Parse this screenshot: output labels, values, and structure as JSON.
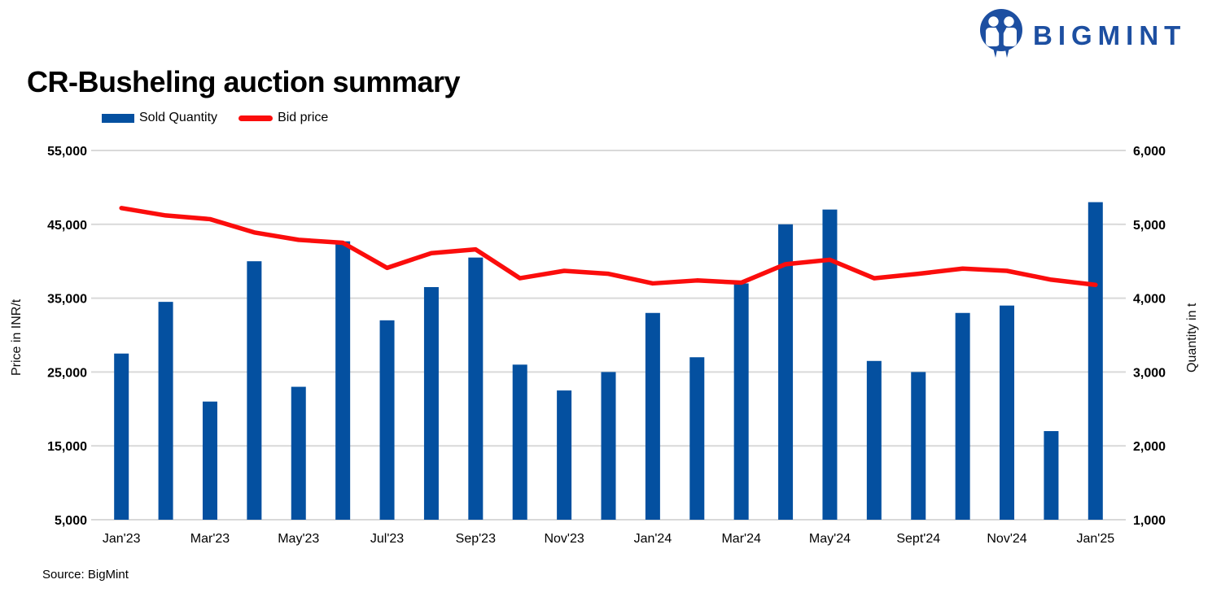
{
  "header": {
    "title": "CR-Busheling auction summary",
    "logo_text": "BIGMINT"
  },
  "legend": {
    "items": [
      {
        "label": "Sold Quantity",
        "type": "bar",
        "color": "#0450a0"
      },
      {
        "label": "Bid price",
        "type": "line",
        "color": "#fb0d0c"
      }
    ]
  },
  "axes": {
    "left_title": "Price in INR/t",
    "right_title": "Quantity in t"
  },
  "footer": {
    "source": "Source: BigMint"
  },
  "colors": {
    "bar_blue": "#0450a0",
    "line_red": "#fb0d0c",
    "logo_blue": "#1d4fa1",
    "gridline_gray": "#d9d9d9"
  },
  "chart_data": {
    "type": "bar",
    "subtype": "bar+line dual axis",
    "title": "CR-Busheling auction summary",
    "source": "Source: BigMint",
    "grid": true,
    "legend_position": "top-left",
    "categories": [
      "Jan'23",
      "Feb'23",
      "Mar'23",
      "Apr'23",
      "May'23",
      "Jun'23",
      "Jul'23",
      "Aug'23",
      "Sep'23",
      "Oct'23",
      "Nov'23",
      "Dec'23",
      "Jan'24",
      "Feb'24",
      "Mar'24",
      "Apr'24",
      "May'24",
      "Jul'24",
      "Sept'24",
      "Oct'24",
      "Nov'24",
      "Dec'24",
      "Jan'25"
    ],
    "x_tick_labels": [
      "Jan'23",
      "Mar'23",
      "May'23",
      "Jul'23",
      "Sep'23",
      "Nov'23",
      "Jan'24",
      "Mar'24",
      "May'24",
      "Sept'24",
      "Nov'24",
      "Jan'25"
    ],
    "series": [
      {
        "name": "Sold Quantity",
        "type": "bar",
        "axis": "right",
        "color": "#0450a0",
        "values": [
          3250,
          3950,
          2600,
          4500,
          2800,
          4770,
          3700,
          4150,
          4550,
          3100,
          2750,
          3000,
          3800,
          3200,
          4200,
          5000,
          5200,
          3150,
          3000,
          3800,
          3900,
          2200,
          5300
        ]
      },
      {
        "name": "Bid price",
        "type": "line",
        "axis": "left",
        "color": "#fb0d0c",
        "values": [
          47200,
          46200,
          45700,
          43900,
          42900,
          42500,
          39100,
          41100,
          41600,
          37700,
          38700,
          38300,
          37000,
          37400,
          37100,
          39600,
          40200,
          37700,
          38300,
          39000,
          38700,
          37500,
          36800
        ]
      }
    ],
    "left_axis": {
      "label": "Price in INR/t",
      "min": 5000,
      "max": 55000,
      "step": 10000,
      "ticks": [
        "55,000",
        "45,000",
        "35,000",
        "25,000",
        "15,000",
        "5,000"
      ]
    },
    "right_axis": {
      "label": "Quantity in t",
      "min": 1000,
      "max": 6000,
      "step": 1000,
      "ticks": [
        "6,000",
        "5,000",
        "4,000",
        "3,000",
        "2,000",
        "1,000"
      ]
    }
  }
}
